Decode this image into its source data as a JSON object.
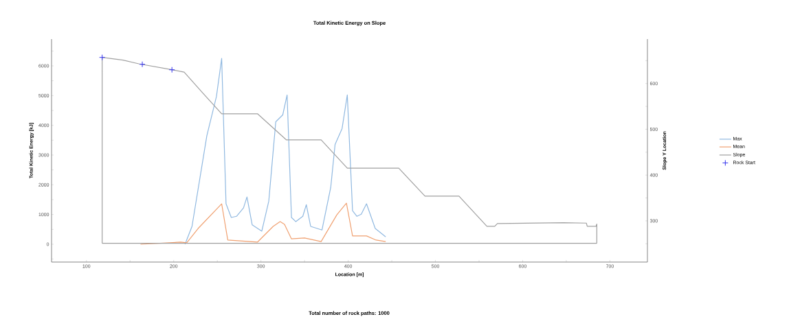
{
  "chart_data": {
    "type": "line",
    "title": "Total Kinetic Energy on Slope",
    "xlabel": "Location [m]",
    "ylabel": "Total Kinetic Energy [kJ]",
    "y2label": "Slope Y Location",
    "annotations": [
      "Total number of rock paths: 1000"
    ],
    "xlim": [
      60,
      743
    ],
    "ylim": [
      -600,
      6900
    ],
    "y2lim": [
      210,
      697
    ],
    "xticks": [
      100,
      {
        "value": 150,
        "label": null
      },
      200,
      {
        "value": 250,
        "label": null
      },
      300,
      {
        "value": 350,
        "label": null
      },
      400,
      {
        "value": 450,
        "label": null
      },
      500,
      {
        "value": 550,
        "label": null
      },
      600,
      {
        "value": 650,
        "label": null
      },
      700
    ],
    "yticks": [
      {
        "value": -500,
        "label": null
      },
      0,
      {
        "value": 500,
        "label": null
      },
      1000,
      {
        "value": 1500,
        "label": null
      },
      2000,
      {
        "value": 2500,
        "label": null
      },
      3000,
      {
        "value": 3500,
        "label": null
      },
      4000,
      {
        "value": 4500,
        "label": null
      },
      5000,
      {
        "value": 5500,
        "label": null
      },
      6000,
      {
        "value": 6500,
        "label": null
      }
    ],
    "y2ticks": [
      {
        "value": 250,
        "label": null
      },
      300,
      {
        "value": 350,
        "label": null
      },
      400,
      {
        "value": 450,
        "label": null
      },
      500,
      {
        "value": 550,
        "label": null
      },
      600,
      {
        "value": 650,
        "label": null
      }
    ],
    "legend": "right",
    "series": [
      {
        "name": "Max",
        "color": "#8fb8e0",
        "x": [
          213,
          221,
          238,
          249,
          255,
          260,
          266,
          272,
          280,
          284,
          290,
          301,
          309,
          317,
          325,
          330,
          335,
          340,
          348,
          352,
          357,
          370,
          380,
          385,
          393,
          399,
          405,
          410,
          415,
          421,
          431,
          443
        ],
        "values": [
          0,
          600,
          3650,
          4970,
          6250,
          1360,
          900,
          940,
          1220,
          1590,
          650,
          440,
          1450,
          4120,
          4350,
          5020,
          900,
          760,
          940,
          1330,
          600,
          480,
          1910,
          3360,
          3890,
          5020,
          1130,
          940,
          1010,
          1360,
          530,
          250
        ]
      },
      {
        "name": "Mean",
        "color": "#f0a070",
        "x": [
          162,
          208,
          215,
          228,
          255,
          262,
          296,
          314,
          322,
          327,
          335,
          350,
          369,
          387,
          398,
          405,
          421,
          432,
          443
        ],
        "values": [
          0,
          70,
          50,
          530,
          1360,
          140,
          70,
          600,
          760,
          670,
          180,
          210,
          90,
          990,
          1380,
          280,
          280,
          140,
          90
        ]
      },
      {
        "name": "Slope",
        "color": "#a0a0a0",
        "axis": "y2",
        "x": [
          118,
          118,
          142,
          160,
          198,
          212,
          233,
          255,
          296,
          329,
          369,
          399,
          458,
          488,
          527,
          559,
          568,
          571,
          647,
          673,
          674,
          684,
          685,
          685
        ],
        "values": [
          251,
          657,
          651,
          643,
          630,
          625,
          580,
          534,
          534,
          477,
          477,
          415,
          415,
          354,
          354,
          288,
          288,
          294,
          296,
          295,
          288,
          288,
          293,
          251
        ]
      },
      {
        "color": "#a0a0a0",
        "axis": "y2",
        "x": [
          118,
          685
        ],
        "values": [
          251,
          251
        ]
      },
      {
        "name": "Rock Start",
        "color": "#3333ee",
        "axis": "y2",
        "type": "scatter",
        "marker": "cross",
        "x": [
          118,
          164,
          198
        ],
        "values": [
          657,
          642,
          630
        ]
      }
    ]
  }
}
